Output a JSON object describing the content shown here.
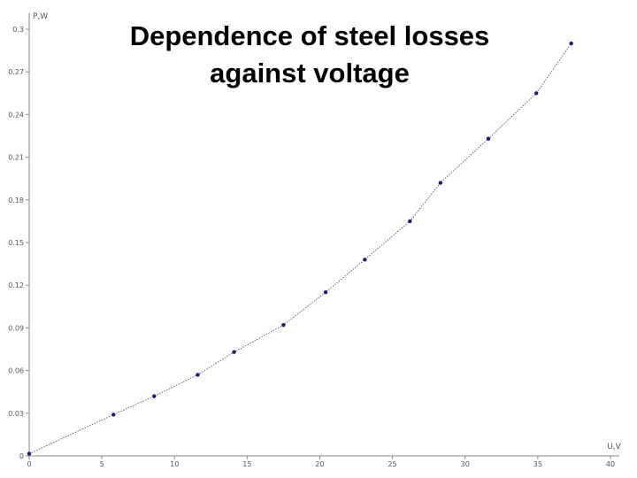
{
  "chart_data": {
    "type": "line",
    "title_lines": [
      "Dependence of steel losses",
      "against  voltage"
    ],
    "xlabel": "U,V",
    "ylabel": "P,W",
    "xlim": [
      0,
      40
    ],
    "ylim": [
      0,
      0.3
    ],
    "x_ticks": [
      0,
      5,
      10,
      15,
      20,
      25,
      30,
      35,
      40
    ],
    "y_ticks": [
      0,
      0.03,
      0.06,
      0.09,
      0.12,
      0.15,
      0.18,
      0.21,
      0.24,
      0.27,
      0.3
    ],
    "x_tick_labels": [
      "0",
      "5",
      "10",
      "15",
      "20",
      "25",
      "30",
      "35",
      "40"
    ],
    "y_tick_labels": [
      "0",
      "0.03",
      "0.06",
      "0.09",
      "0.12",
      "0.15",
      "0.18",
      "0.21",
      "0.24",
      "0.27",
      "0.3"
    ],
    "grid": false,
    "series": [
      {
        "color": "#1a1a6e",
        "x": [
          0,
          5.8,
          8.6,
          11.6,
          14.1,
          17.5,
          20.4,
          23.1,
          26.2,
          28.3,
          31.6,
          34.9,
          37.3
        ],
        "y": [
          0.0015,
          0.029,
          0.042,
          0.057,
          0.073,
          0.092,
          0.115,
          0.138,
          0.165,
          0.192,
          0.223,
          0.255,
          0.29
        ]
      }
    ]
  }
}
